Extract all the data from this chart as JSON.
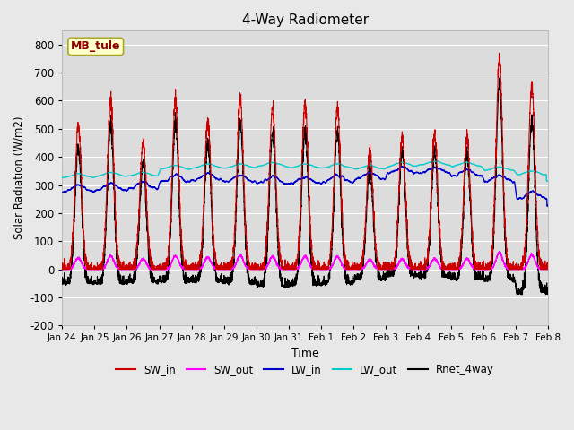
{
  "title": "4-Way Radiometer",
  "xlabel": "Time",
  "ylabel": "Solar Radiation (W/m2)",
  "ylim": [
    -200,
    850
  ],
  "yticks": [
    -200,
    -100,
    0,
    100,
    200,
    300,
    400,
    500,
    600,
    700,
    800
  ],
  "xtick_labels": [
    "Jan 24",
    "Jan 25",
    "Jan 26",
    "Jan 27",
    "Jan 28",
    "Jan 29",
    "Jan 30",
    "Jan 31",
    "Feb 1",
    "Feb 2",
    "Feb 3",
    "Feb 4",
    "Feb 5",
    "Feb 6",
    "Feb 7",
    "Feb 8"
  ],
  "station_label": "MB_tule",
  "fig_bg_color": "#e8e8e8",
  "plot_bg_color": "#dcdcdc",
  "grid_color": "#ffffff",
  "colors": {
    "SW_in": "#cc0000",
    "SW_out": "#ff00ff",
    "LW_in": "#0000cc",
    "LW_out": "#00cccc",
    "Rnet_4way": "#000000"
  },
  "n_days": 15,
  "SW_in_peaks": [
    510,
    595,
    450,
    600,
    530,
    610,
    575,
    590,
    575,
    420,
    470,
    480,
    470,
    750,
    650
  ],
  "LW_in_base": [
    275,
    280,
    285,
    310,
    315,
    310,
    305,
    305,
    310,
    320,
    340,
    340,
    330,
    310,
    250
  ],
  "LW_out_base": [
    325,
    330,
    330,
    355,
    360,
    360,
    365,
    360,
    360,
    355,
    365,
    370,
    365,
    350,
    335
  ]
}
